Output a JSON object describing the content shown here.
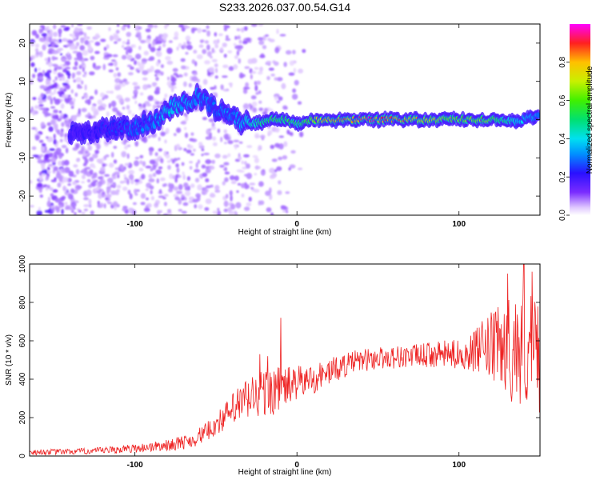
{
  "title": "S233.2026.037.00.54.G14",
  "colors": {
    "snr_line": "#ee2222",
    "ridge_outer": "#4b00ff",
    "ridge_core": "#ff2020"
  },
  "chart_data": [
    {
      "type": "heatmap",
      "xlabel": "Height of straight line (km)",
      "ylabel": "Frequency (Hz)",
      "xlim": [
        -165,
        150
      ],
      "ylim": [
        -25,
        25
      ],
      "x_ticks": [
        {
          "value": -100,
          "label": "-100"
        },
        {
          "value": 0,
          "label": "0"
        },
        {
          "value": 100,
          "label": "100"
        }
      ],
      "y_ticks": [
        {
          "value": -20,
          "label": "-20"
        },
        {
          "value": -10,
          "label": "-10"
        },
        {
          "value": 0,
          "label": "0"
        },
        {
          "value": 10,
          "label": "10"
        },
        {
          "value": 20,
          "label": "20"
        }
      ],
      "colorbar": {
        "label": "Normalized spectral amplitude",
        "range": [
          0,
          1
        ],
        "ticks": [
          {
            "value": 0.0,
            "label": "0.0"
          },
          {
            "value": 0.2,
            "label": "0.2"
          },
          {
            "value": 0.4,
            "label": "0.4"
          },
          {
            "value": 0.6,
            "label": "0.6"
          },
          {
            "value": 0.8,
            "label": "0.8"
          }
        ],
        "stops": [
          {
            "value": 0.0,
            "color": "#ffffff"
          },
          {
            "value": 0.04,
            "color": "#e0c8ff"
          },
          {
            "value": 0.12,
            "color": "#7a2cff"
          },
          {
            "value": 0.22,
            "color": "#2a10ff"
          },
          {
            "value": 0.32,
            "color": "#0090ff"
          },
          {
            "value": 0.4,
            "color": "#00e0f0"
          },
          {
            "value": 0.5,
            "color": "#00e070"
          },
          {
            "value": 0.6,
            "color": "#40f000"
          },
          {
            "value": 0.7,
            "color": "#c8f000"
          },
          {
            "value": 0.8,
            "color": "#ffc000"
          },
          {
            "value": 0.9,
            "color": "#ff2020"
          },
          {
            "value": 1.0,
            "color": "#ff00ff"
          }
        ]
      },
      "ridge": [
        {
          "x": -130,
          "freq": -3.5,
          "amp": 0.2
        },
        {
          "x": -115,
          "freq": -2.5,
          "amp": 0.25
        },
        {
          "x": -100,
          "freq": -2,
          "amp": 0.3
        },
        {
          "x": -85,
          "freq": 0,
          "amp": 0.35
        },
        {
          "x": -80,
          "freq": 3,
          "amp": 0.45
        },
        {
          "x": -70,
          "freq": 4.5,
          "amp": 0.4
        },
        {
          "x": -60,
          "freq": 6,
          "amp": 0.35
        },
        {
          "x": -50,
          "freq": 3,
          "amp": 0.3
        },
        {
          "x": -40,
          "freq": 0.5,
          "amp": 0.35
        },
        {
          "x": -30,
          "freq": -1,
          "amp": 0.45
        },
        {
          "x": -20,
          "freq": -0.5,
          "amp": 0.55
        },
        {
          "x": -10,
          "freq": 0.3,
          "amp": 0.6
        },
        {
          "x": 0,
          "freq": -1,
          "amp": 0.55
        },
        {
          "x": 10,
          "freq": 0,
          "amp": 0.7
        },
        {
          "x": 20,
          "freq": 0,
          "amp": 0.85
        },
        {
          "x": 40,
          "freq": 0,
          "amp": 0.95
        },
        {
          "x": 60,
          "freq": 0,
          "amp": 0.9
        },
        {
          "x": 80,
          "freq": 0,
          "amp": 0.75
        },
        {
          "x": 100,
          "freq": 0,
          "amp": 0.7
        },
        {
          "x": 120,
          "freq": 0,
          "amp": 0.65
        },
        {
          "x": 135,
          "freq": -0.5,
          "amp": 0.45
        },
        {
          "x": 148,
          "freq": 1,
          "amp": 0.35
        }
      ]
    },
    {
      "type": "line",
      "xlabel": "Height of straight line (km)",
      "ylabel": "SNR (10 * v/v)",
      "xlim": [
        -165,
        150
      ],
      "ylim": [
        0,
        1000
      ],
      "x_ticks": [
        {
          "value": -100,
          "label": "-100"
        },
        {
          "value": 0,
          "label": "0"
        },
        {
          "value": 100,
          "label": "100"
        }
      ],
      "y_ticks": [
        {
          "value": 0,
          "label": "0"
        },
        {
          "value": 200,
          "label": "200"
        },
        {
          "value": 400,
          "label": "400"
        },
        {
          "value": 600,
          "label": "600"
        },
        {
          "value": 800,
          "label": "800"
        },
        {
          "value": 1000,
          "label": "1000"
        }
      ],
      "series": [
        {
          "envelope": [
            {
              "x": -165,
              "mean": 20,
              "spread": 15
            },
            {
              "x": -140,
              "mean": 22,
              "spread": 15
            },
            {
              "x": -120,
              "mean": 28,
              "spread": 18
            },
            {
              "x": -100,
              "mean": 40,
              "spread": 22
            },
            {
              "x": -80,
              "mean": 55,
              "spread": 30
            },
            {
              "x": -65,
              "mean": 80,
              "spread": 40
            },
            {
              "x": -55,
              "mean": 130,
              "spread": 50
            },
            {
              "x": -45,
              "mean": 200,
              "spread": 70
            },
            {
              "x": -35,
              "mean": 270,
              "spread": 110
            },
            {
              "x": -25,
              "mean": 320,
              "spread": 130
            },
            {
              "x": -15,
              "mean": 340,
              "spread": 130
            },
            {
              "x": 0,
              "mean": 380,
              "spread": 90
            },
            {
              "x": 10,
              "mean": 400,
              "spread": 80
            },
            {
              "x": 20,
              "mean": 440,
              "spread": 70
            },
            {
              "x": 35,
              "mean": 490,
              "spread": 60
            },
            {
              "x": 50,
              "mean": 510,
              "spread": 60
            },
            {
              "x": 70,
              "mean": 520,
              "spread": 60
            },
            {
              "x": 90,
              "mean": 530,
              "spread": 70
            },
            {
              "x": 105,
              "mean": 530,
              "spread": 80
            },
            {
              "x": 115,
              "mean": 560,
              "spread": 150
            },
            {
              "x": 125,
              "mean": 570,
              "spread": 220
            },
            {
              "x": 135,
              "mean": 560,
              "spread": 300
            },
            {
              "x": 150,
              "mean": 540,
              "spread": 320
            }
          ],
          "spikes": [
            {
              "x": -10,
              "y": 720
            },
            {
              "x": -18,
              "y": 520
            },
            {
              "x": -23,
              "y": 530
            },
            {
              "x": 130,
              "y": 950
            },
            {
              "x": 140,
              "y": 1000
            },
            {
              "x": 145,
              "y": 960
            }
          ]
        }
      ]
    }
  ]
}
